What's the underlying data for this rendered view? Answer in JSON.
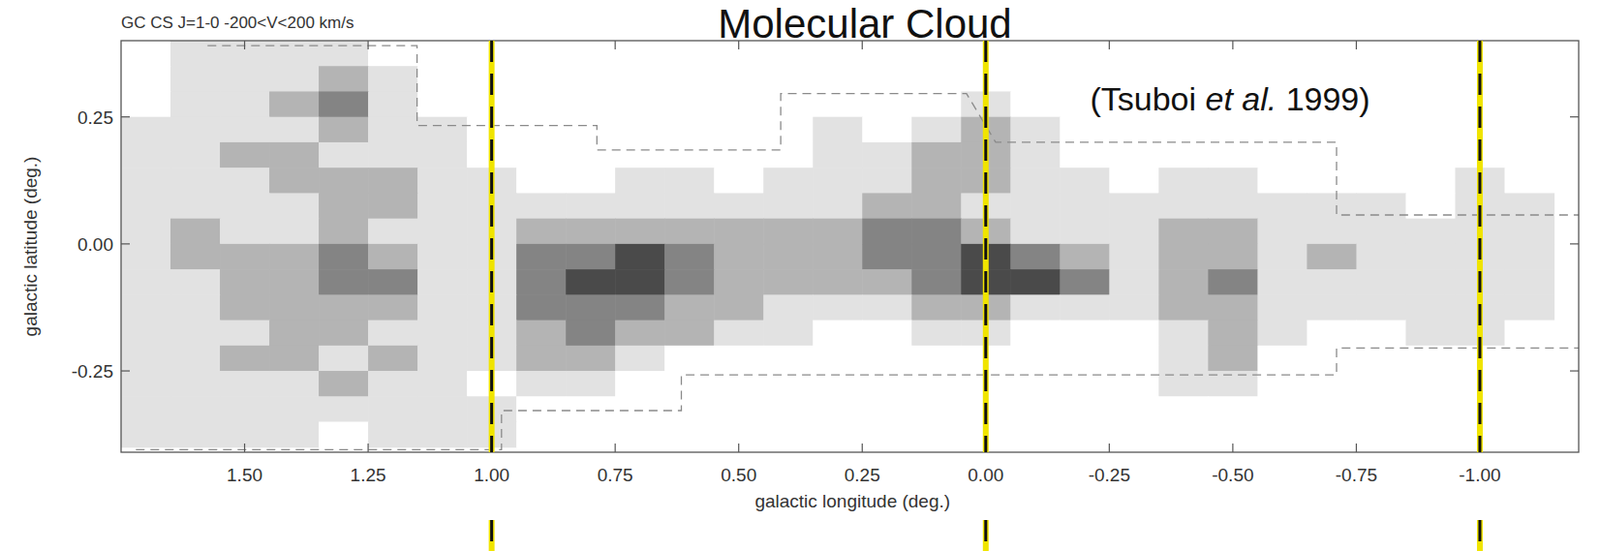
{
  "chart_data": {
    "type": "heatmap",
    "title": "Molecular Cloud",
    "subtitle": "GC CS J=1-0  -200<V<200 km/s",
    "annotation_parts": [
      "(Tsuboi ",
      "et al.",
      " 1999)"
    ],
    "x_label": "galactic  longitude  (deg.)",
    "y_label": "galactic  latitude  (deg.)",
    "xlim": [
      1.75,
      -1.2
    ],
    "ylim": [
      -0.41,
      0.4
    ],
    "xticks": [
      {
        "value": 1.5,
        "label": "1.50"
      },
      {
        "value": 1.25,
        "label": "1.25"
      },
      {
        "value": 1.0,
        "label": "1.00"
      },
      {
        "value": 0.75,
        "label": "0.75"
      },
      {
        "value": 0.5,
        "label": "0.50"
      },
      {
        "value": 0.25,
        "label": "0.25"
      },
      {
        "value": 0.0,
        "label": "0.00"
      },
      {
        "value": -0.25,
        "label": "-0.25"
      },
      {
        "value": -0.5,
        "label": "-0.50"
      },
      {
        "value": -0.75,
        "label": "-0.75"
      },
      {
        "value": -1.0,
        "label": "-1.00"
      }
    ],
    "yticks": [
      {
        "value": 0.25,
        "label": "0.25"
      },
      {
        "value": 0.0,
        "label": "0.00"
      },
      {
        "value": -0.25,
        "label": "-0.25"
      }
    ],
    "x": [
      1.7,
      1.6,
      1.5,
      1.4,
      1.3,
      1.2,
      1.1,
      1.0,
      0.9,
      0.8,
      0.7,
      0.6,
      0.5,
      0.4,
      0.3,
      0.2,
      0.1,
      0.0,
      -0.1,
      -0.2,
      -0.3,
      -0.4,
      -0.5,
      -0.6,
      -0.7,
      -0.8,
      -0.9,
      -1.0,
      -1.1
    ],
    "y": [
      0.375,
      0.325,
      0.275,
      0.225,
      0.175,
      0.125,
      0.075,
      0.025,
      -0.025,
      -0.075,
      -0.125,
      -0.175,
      -0.225,
      -0.275,
      -0.325,
      -0.375
    ],
    "cells": [
      [
        0,
        1,
        1,
        1,
        1,
        0,
        0,
        0,
        0,
        0,
        0,
        0,
        0,
        0,
        0,
        0,
        0,
        0,
        0,
        0,
        0,
        0,
        0,
        0,
        0,
        0,
        0,
        0,
        0
      ],
      [
        0,
        1,
        1,
        1,
        2,
        1,
        0,
        0,
        0,
        0,
        0,
        0,
        0,
        0,
        0,
        0,
        0,
        0,
        0,
        0,
        0,
        0,
        0,
        0,
        0,
        0,
        0,
        0,
        0
      ],
      [
        0,
        1,
        1,
        2,
        3,
        1,
        0,
        0,
        0,
        0,
        0,
        0,
        0,
        0,
        0,
        0,
        0,
        1,
        0,
        0,
        0,
        0,
        0,
        0,
        0,
        0,
        0,
        0,
        0
      ],
      [
        1,
        1,
        1,
        1,
        2,
        1,
        1,
        0,
        0,
        0,
        0,
        0,
        0,
        0,
        1,
        0,
        1,
        2,
        1,
        0,
        0,
        0,
        0,
        0,
        0,
        0,
        0,
        0,
        0
      ],
      [
        1,
        1,
        2,
        2,
        1,
        1,
        1,
        0,
        0,
        0,
        0,
        0,
        0,
        0,
        1,
        1,
        2,
        2,
        1,
        0,
        0,
        0,
        0,
        0,
        0,
        0,
        0,
        0,
        0
      ],
      [
        1,
        1,
        1,
        2,
        2,
        2,
        1,
        1,
        0,
        0,
        1,
        1,
        0,
        1,
        1,
        1,
        2,
        2,
        1,
        1,
        0,
        1,
        1,
        0,
        0,
        0,
        0,
        1,
        0
      ],
      [
        1,
        1,
        1,
        1,
        2,
        2,
        1,
        1,
        1,
        1,
        1,
        1,
        1,
        1,
        1,
        2,
        2,
        1,
        1,
        1,
        1,
        1,
        1,
        1,
        1,
        1,
        0,
        1,
        1
      ],
      [
        1,
        2,
        1,
        1,
        2,
        1,
        1,
        1,
        2,
        2,
        2,
        2,
        2,
        2,
        2,
        3,
        3,
        2,
        1,
        1,
        1,
        2,
        2,
        1,
        1,
        1,
        1,
        1,
        1
      ],
      [
        1,
        2,
        2,
        2,
        3,
        2,
        1,
        1,
        3,
        3,
        4,
        3,
        2,
        2,
        2,
        3,
        3,
        4,
        3,
        2,
        1,
        2,
        2,
        1,
        2,
        1,
        1,
        1,
        1
      ],
      [
        1,
        1,
        2,
        2,
        3,
        3,
        1,
        1,
        3,
        4,
        4,
        3,
        2,
        2,
        2,
        2,
        3,
        4,
        4,
        3,
        1,
        2,
        3,
        1,
        1,
        1,
        1,
        1,
        1
      ],
      [
        1,
        1,
        2,
        2,
        2,
        2,
        1,
        1,
        3,
        3,
        3,
        2,
        2,
        1,
        1,
        1,
        2,
        2,
        1,
        1,
        1,
        2,
        2,
        1,
        1,
        1,
        1,
        1,
        1
      ],
      [
        1,
        1,
        1,
        2,
        2,
        1,
        1,
        1,
        2,
        3,
        2,
        2,
        1,
        1,
        0,
        0,
        1,
        1,
        0,
        0,
        0,
        1,
        2,
        1,
        0,
        0,
        1,
        1,
        0
      ],
      [
        1,
        1,
        2,
        2,
        1,
        2,
        1,
        1,
        2,
        2,
        1,
        0,
        0,
        0,
        0,
        0,
        0,
        0,
        0,
        0,
        0,
        1,
        2,
        0,
        0,
        0,
        0,
        0,
        0
      ],
      [
        1,
        1,
        1,
        1,
        2,
        1,
        1,
        0,
        1,
        1,
        0,
        0,
        0,
        0,
        0,
        0,
        0,
        0,
        0,
        0,
        0,
        1,
        1,
        0,
        0,
        0,
        0,
        0,
        0
      ],
      [
        1,
        1,
        1,
        1,
        1,
        1,
        1,
        1,
        0,
        0,
        0,
        0,
        0,
        0,
        0,
        0,
        0,
        0,
        0,
        0,
        0,
        0,
        0,
        0,
        0,
        0,
        0,
        0,
        0
      ],
      [
        1,
        1,
        1,
        1,
        0,
        1,
        1,
        1,
        0,
        0,
        0,
        0,
        0,
        0,
        0,
        0,
        0,
        0,
        0,
        0,
        0,
        0,
        0,
        0,
        0,
        0,
        0,
        0,
        0
      ]
    ],
    "reference_lines": [
      1.0,
      0.0,
      -1.0
    ],
    "survey_boundary": [
      {
        "x": [
          1.575,
          1.151,
          1.151,
          0.787,
          0.787,
          0.415,
          0.415,
          0.039,
          -0.02,
          -0.71,
          -0.71,
          -1.2
        ],
        "y": [
          0.39,
          0.39,
          0.233,
          0.233,
          0.185,
          0.185,
          0.296,
          0.296,
          0.2,
          0.2,
          0.057,
          0.057
        ]
      },
      {
        "x": [
          1.72,
          0.98,
          0.98,
          0.616,
          0.616,
          -0.02,
          -0.71,
          -0.71,
          -1.2
        ],
        "y": [
          -0.405,
          -0.405,
          -0.328,
          -0.328,
          -0.258,
          -0.258,
          -0.258,
          -0.205,
          -0.205
        ]
      }
    ]
  }
}
